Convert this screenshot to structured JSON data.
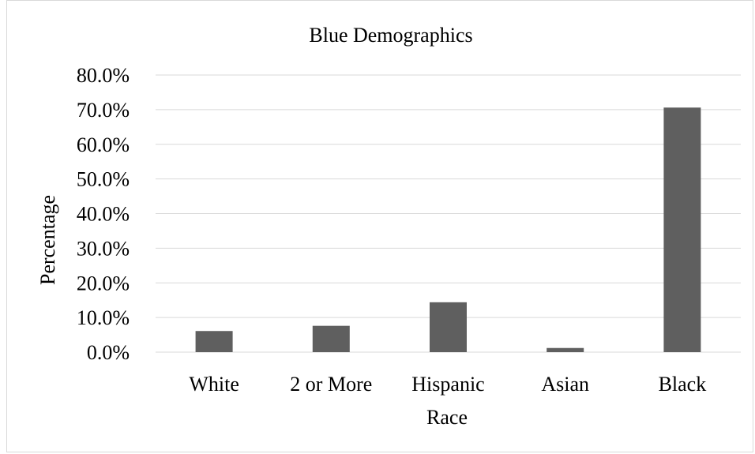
{
  "chart_data": {
    "type": "bar",
    "title": "Blue Demographics",
    "xlabel": "Race",
    "ylabel": "Percentage",
    "categories": [
      "White",
      "2 or More",
      "Hispanic",
      "Asian",
      "Black"
    ],
    "values": [
      6.1,
      7.6,
      14.4,
      1.2,
      70.6
    ],
    "ylim": [
      0,
      80
    ],
    "yticks": [
      0,
      10,
      20,
      30,
      40,
      50,
      60,
      70,
      80
    ],
    "ytick_labels": [
      "0.0%",
      "10.0%",
      "20.0%",
      "30.0%",
      "40.0%",
      "50.0%",
      "60.0%",
      "70.0%",
      "80.0%"
    ],
    "grid": true,
    "legend": "none",
    "bar_color": "#5f5f5f",
    "grid_color": "#d9d9d9"
  }
}
